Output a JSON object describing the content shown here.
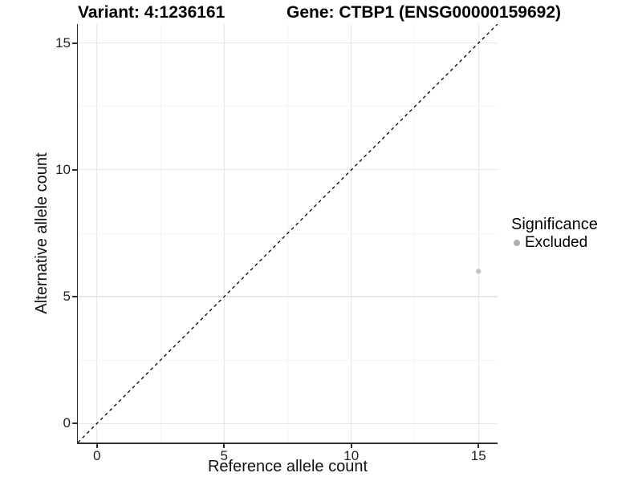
{
  "titles": {
    "variant": "Variant: 4:1236161",
    "gene": "Gene: CTBP1 (ENSG00000159692)"
  },
  "legend": {
    "title": "Significance",
    "items": [
      {
        "label": "Excluded",
        "color": "#aeaeae"
      }
    ]
  },
  "chart_data": {
    "type": "scatter",
    "title": "Variant: 4:1236161   Gene: CTBP1 (ENSG00000159692)",
    "xlabel": "Reference allele count",
    "ylabel": "Alternative allele count",
    "xlim": [
      -0.75,
      15.75
    ],
    "ylim": [
      -0.75,
      15.75
    ],
    "x_ticks": [
      0,
      5,
      10,
      15
    ],
    "y_ticks": [
      0,
      5,
      10,
      15
    ],
    "x_minor_ticks": [
      2.5,
      7.5,
      12.5
    ],
    "y_minor_ticks": [
      2.5,
      7.5,
      12.5
    ],
    "grid": true,
    "legend_position": "right",
    "identity_line": {
      "style": "dashed",
      "color": "#000000",
      "from": [
        -0.75,
        -0.75
      ],
      "to": [
        15.75,
        15.75
      ]
    },
    "series": [
      {
        "name": "Excluded",
        "color": "#c4c4c4",
        "point_radius": 3.2,
        "points": [
          [
            15,
            6
          ]
        ]
      }
    ],
    "colors": {
      "axis_line": "#2f2f2f",
      "major_grid": "#e7e7e7",
      "minor_grid": "#f4f4f4",
      "tick_text": "#1f1f1f"
    }
  }
}
